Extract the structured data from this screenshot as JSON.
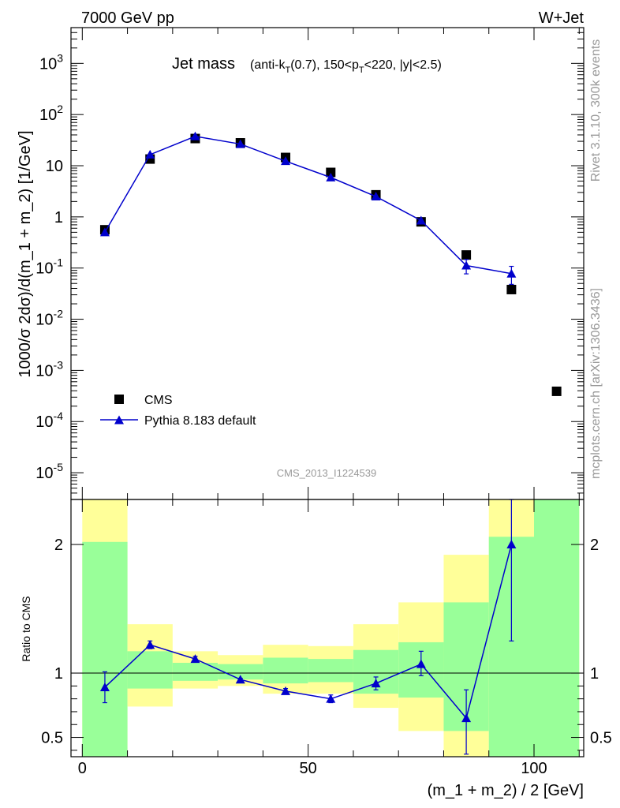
{
  "header": {
    "left": "7000 GeV pp",
    "right": "W+Jet"
  },
  "side_labels": {
    "rivet": "Rivet 3.1.10,  300k events",
    "mcplots": "mcplots.cern.ch [arXiv:1306.3436]"
  },
  "watermark": "CMS_2013_I1224539",
  "colors": {
    "mc": "#0000cc",
    "data": "#000000",
    "band_inner": "#99ff99",
    "band_outer": "#ffff99"
  },
  "chart_data": [
    {
      "type": "scatter",
      "panel": "main",
      "title_main": "Jet mass",
      "title_sub": "(anti-k_T(0.7), 150<p_T<220, |y|<2.5)",
      "ylabel": "1000/σ 2dσ)/d(m_1 + m_2) [1/GeV]",
      "yscale": "log",
      "ylim": [
        3e-06,
        5000
      ],
      "xlim": [
        -2.5,
        111
      ],
      "ytick_labels": [
        {
          "value": 1000,
          "base": "10",
          "exp": "3"
        },
        {
          "value": 100,
          "base": "10",
          "exp": "2"
        },
        {
          "value": 10,
          "base": "10",
          "exp": ""
        },
        {
          "value": 1,
          "base": "1",
          "exp": ""
        },
        {
          "value": 0.1,
          "base": "10",
          "exp": "-1"
        },
        {
          "value": 0.01,
          "base": "10",
          "exp": "-2"
        },
        {
          "value": 0.001,
          "base": "10",
          "exp": "-3"
        },
        {
          "value": 0.0001,
          "base": "10",
          "exp": "-4"
        },
        {
          "value": 1e-05,
          "base": "10",
          "exp": "-5"
        }
      ],
      "legend_position": "bottom-left",
      "series": [
        {
          "name": "CMS",
          "style": "square-marker",
          "x": [
            5,
            15,
            25,
            35,
            45,
            55,
            65,
            75,
            85,
            95,
            105
          ],
          "y": [
            0.56,
            13.5,
            34,
            28,
            14.5,
            7.4,
            2.7,
            0.8,
            0.18,
            0.038,
            0.00039
          ]
        },
        {
          "name": "Pythia 8.183 default",
          "style": "line-triangle",
          "x": [
            5,
            15,
            25,
            35,
            45,
            55,
            65,
            75,
            85,
            95
          ],
          "y": [
            0.5,
            16.5,
            37.5,
            26.5,
            12.3,
            5.9,
            2.5,
            0.85,
            0.112,
            0.078
          ],
          "y_err": [
            0.05,
            0.8,
            1.5,
            1.2,
            0.6,
            0.3,
            0.15,
            0.06,
            0.035,
            0.03
          ]
        }
      ]
    },
    {
      "type": "line",
      "panel": "ratio",
      "ylabel": "Ratio to CMS",
      "xlabel": "(m_1 + m_2) / 2 [GeV]",
      "ylim": [
        0.35,
        2.35
      ],
      "xlim": [
        -2.5,
        111
      ],
      "xticks": [
        0,
        50,
        100
      ],
      "xtick_labels": [
        "0",
        "50",
        "100"
      ],
      "yticks": [
        0.5,
        1,
        2
      ],
      "ytick_labels": [
        "0.5",
        "1",
        "2"
      ],
      "bands": [
        {
          "x_lo": 0,
          "x_hi": 10,
          "inner": [
            0.35,
            2.02
          ],
          "outer": [
            0.35,
            2.35
          ]
        },
        {
          "x_lo": 10,
          "x_hi": 20,
          "inner": [
            0.88,
            1.17
          ],
          "outer": [
            0.74,
            1.38
          ]
        },
        {
          "x_lo": 20,
          "x_hi": 30,
          "inner": [
            0.94,
            1.08
          ],
          "outer": [
            0.88,
            1.17
          ]
        },
        {
          "x_lo": 30,
          "x_hi": 40,
          "inner": [
            0.95,
            1.07
          ],
          "outer": [
            0.9,
            1.14
          ]
        },
        {
          "x_lo": 40,
          "x_hi": 50,
          "inner": [
            0.92,
            1.12
          ],
          "outer": [
            0.84,
            1.22
          ]
        },
        {
          "x_lo": 50,
          "x_hi": 60,
          "inner": [
            0.93,
            1.11
          ],
          "outer": [
            0.84,
            1.21
          ]
        },
        {
          "x_lo": 60,
          "x_hi": 70,
          "inner": [
            0.84,
            1.18
          ],
          "outer": [
            0.73,
            1.38
          ]
        },
        {
          "x_lo": 70,
          "x_hi": 80,
          "inner": [
            0.81,
            1.24
          ],
          "outer": [
            0.55,
            1.55
          ]
        },
        {
          "x_lo": 80,
          "x_hi": 90,
          "inner": [
            0.55,
            1.55
          ],
          "outer": [
            0.35,
            1.92
          ]
        },
        {
          "x_lo": 90,
          "x_hi": 100,
          "inner": [
            0.35,
            2.06
          ],
          "outer": [
            0.35,
            2.35
          ]
        },
        {
          "x_lo": 100,
          "x_hi": 110,
          "inner": [
            0.35,
            2.35
          ],
          "outer": [
            0.35,
            2.35
          ]
        }
      ],
      "series": [
        {
          "name": "Pythia 8.183 default",
          "x": [
            5,
            15,
            25,
            35,
            45,
            55,
            65,
            75,
            85,
            95
          ],
          "y": [
            0.89,
            1.22,
            1.11,
            0.95,
            0.86,
            0.8,
            0.92,
            1.07,
            0.65,
            2.0
          ],
          "y_lo": [
            0.77,
            1.19,
            1.1,
            0.94,
            0.84,
            0.77,
            0.87,
            0.98,
            0.37,
            1.25
          ],
          "y_hi": [
            1.01,
            1.25,
            1.13,
            0.96,
            0.88,
            0.83,
            0.97,
            1.17,
            0.87,
            2.35
          ]
        }
      ],
      "reference_line": 1
    }
  ]
}
